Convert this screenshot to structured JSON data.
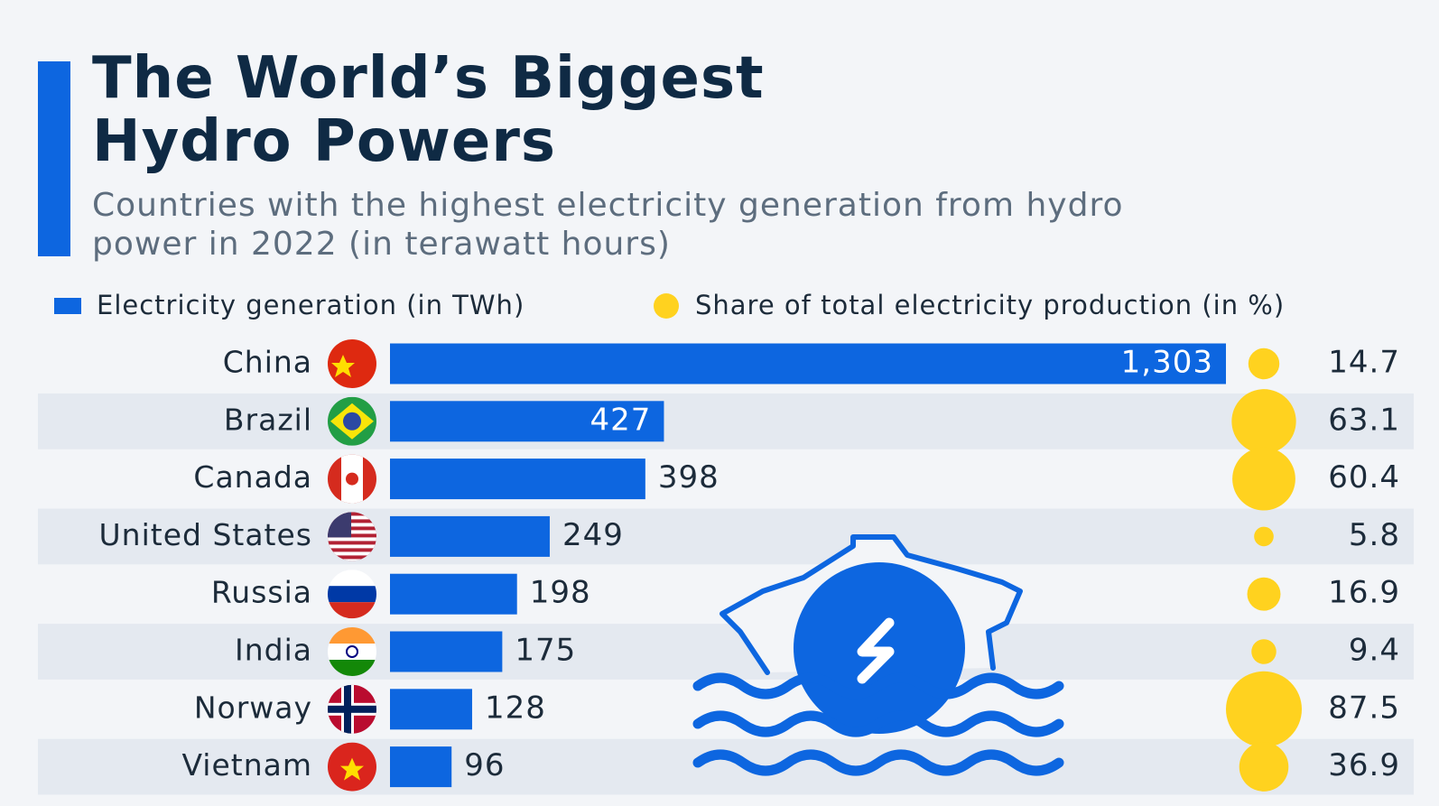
{
  "chart_data": {
    "type": "bar",
    "title": "The World’s Biggest Hydro Powers",
    "subtitle": "Countries with the highest electricity generation from hydro power in 2022 (in terawatt hours)",
    "categories": [
      "China",
      "Brazil",
      "Canada",
      "United States",
      "Russia",
      "India",
      "Norway",
      "Vietnam"
    ],
    "series": [
      {
        "name": "Electricity generation (in TWh)",
        "color": "#0d66e0",
        "values": [
          1303,
          427,
          398,
          249,
          198,
          175,
          128,
          96
        ],
        "value_labels": [
          "1,303",
          "427",
          "398",
          "249",
          "198",
          "175",
          "128",
          "96"
        ]
      },
      {
        "name": "Share of total electricity production (in %)",
        "color": "#ffd21f",
        "values": [
          14.7,
          63.1,
          60.4,
          5.8,
          16.9,
          9.4,
          87.5,
          36.9
        ]
      }
    ]
  }
}
